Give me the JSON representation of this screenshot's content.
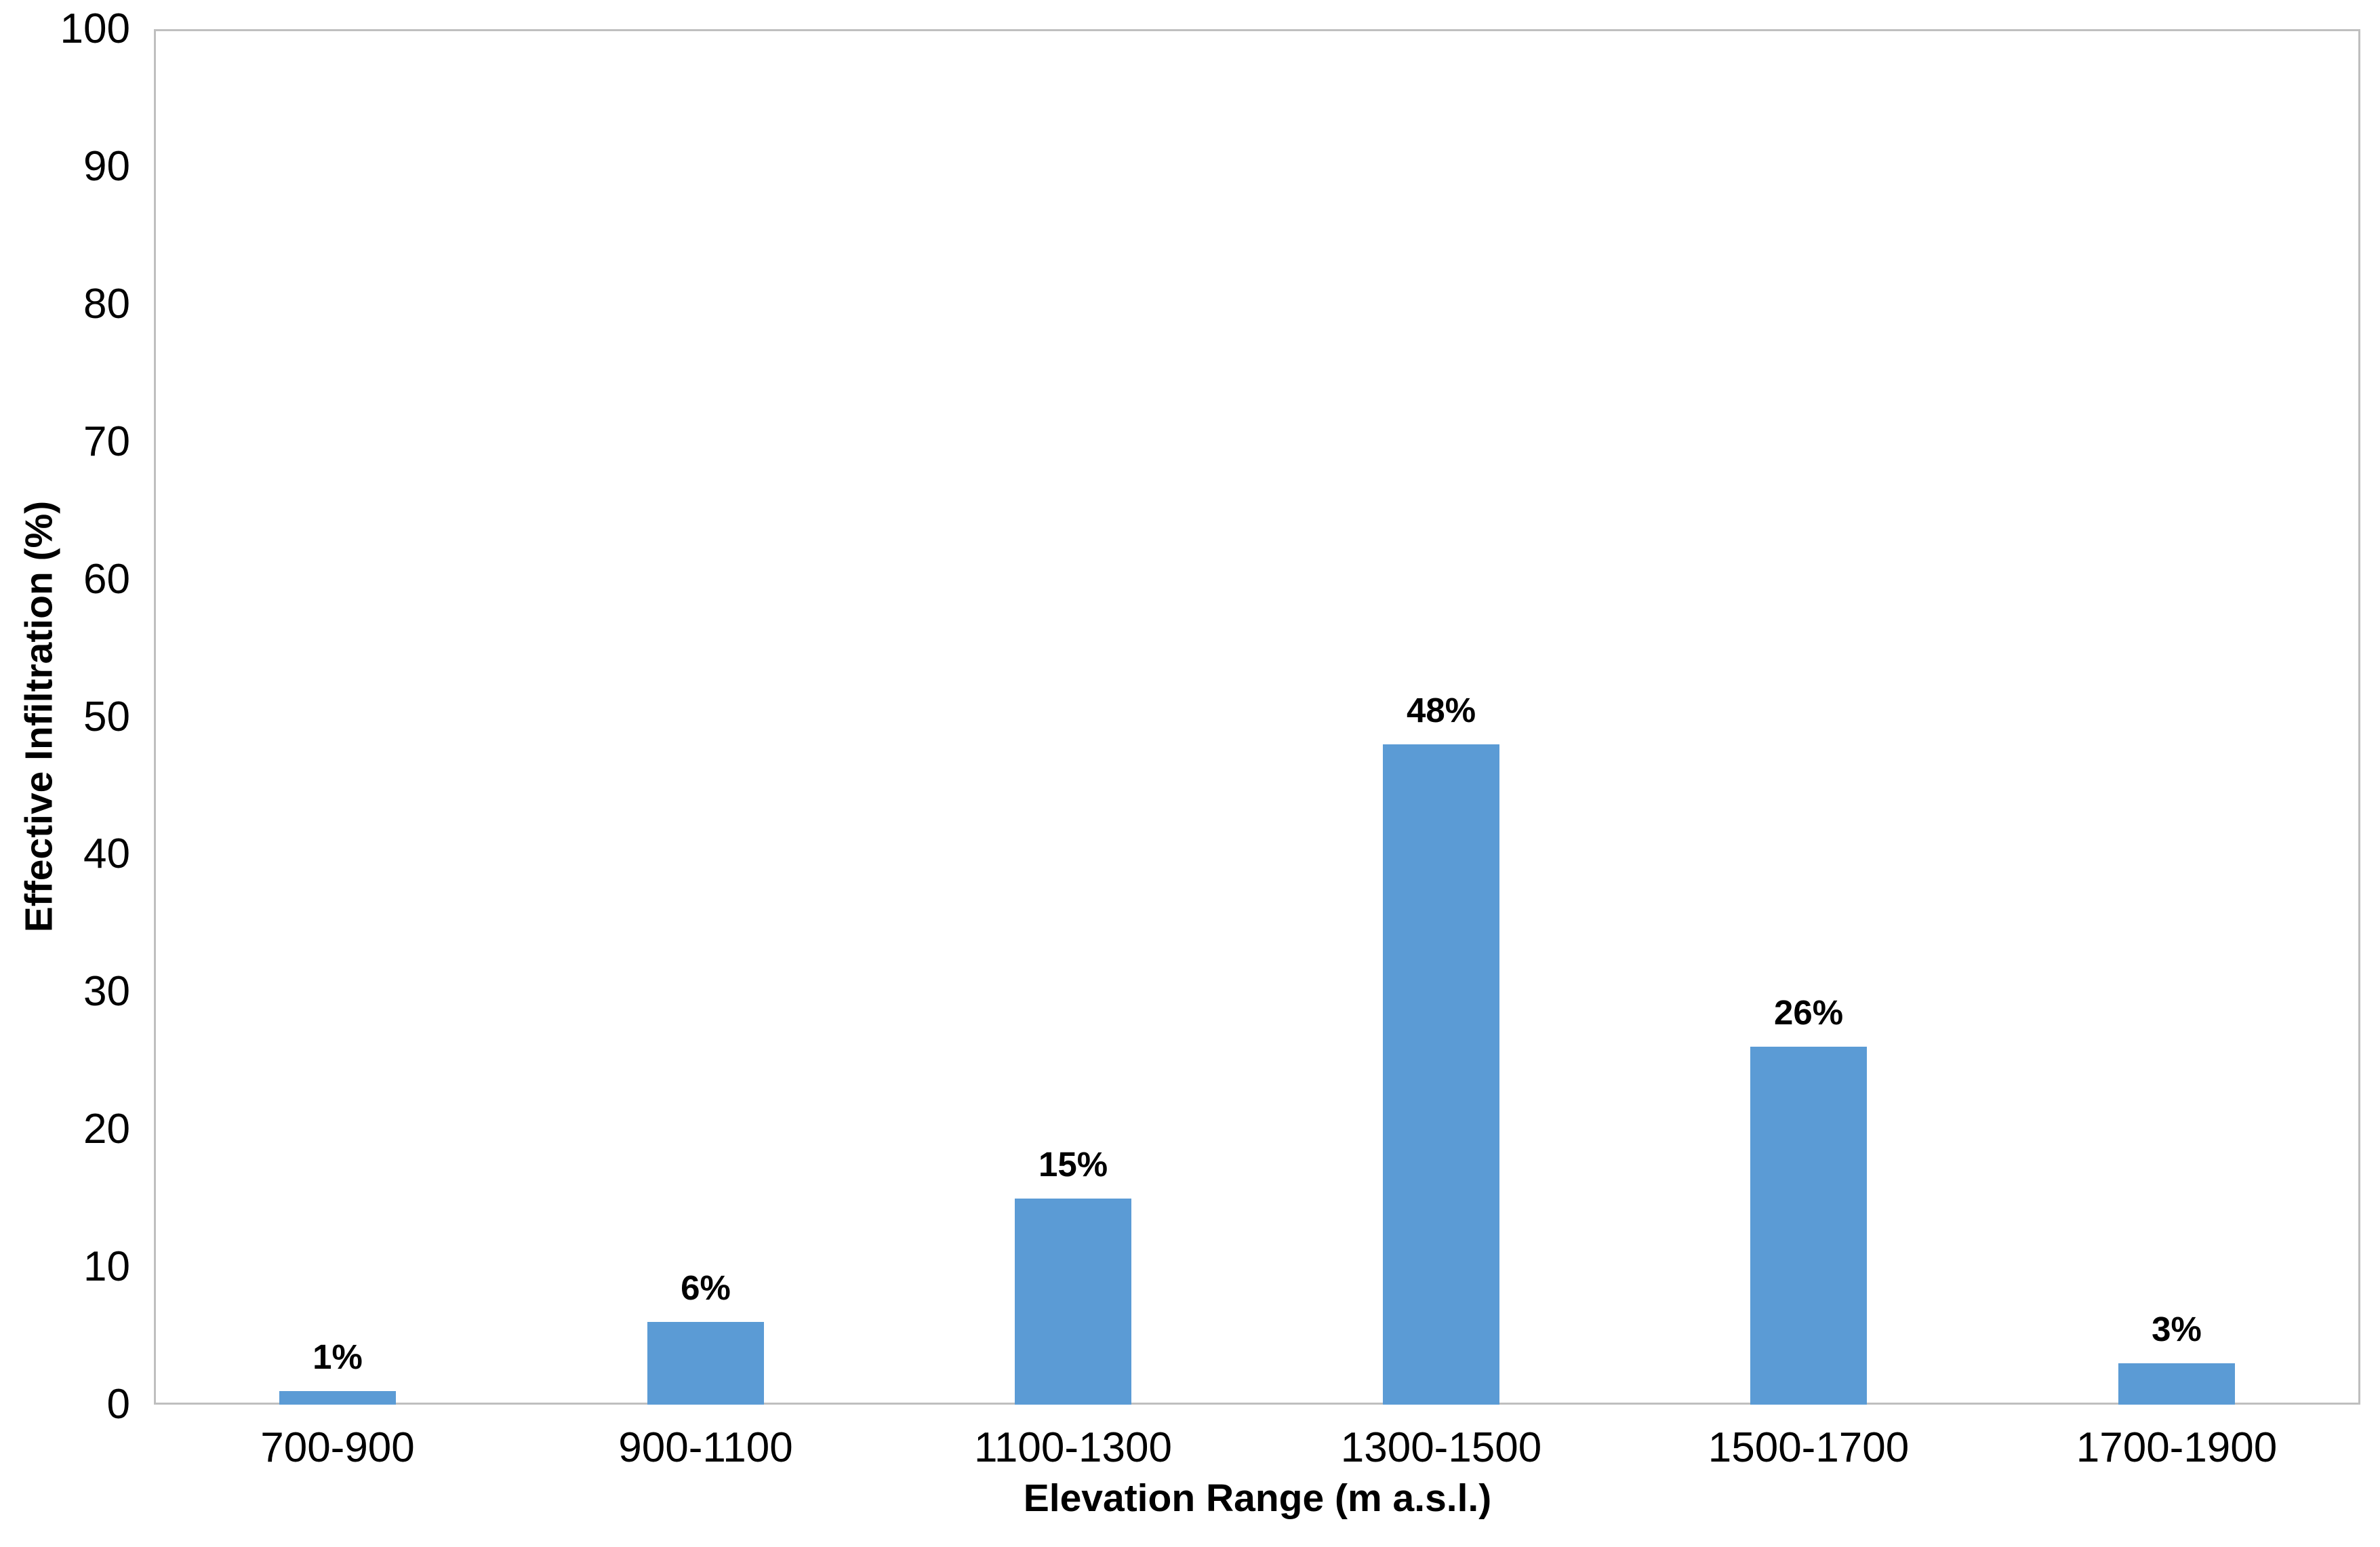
{
  "chart_data": {
    "type": "bar",
    "title": "",
    "categories": [
      "700-900",
      "900-1100",
      "1100-1300",
      "1300-1500",
      "1500-1700",
      "1700-1900"
    ],
    "values": [
      1,
      6,
      15,
      48,
      26,
      3
    ],
    "data_labels": [
      "1%",
      "6%",
      "15%",
      "48%",
      "26%",
      "3%"
    ],
    "xlabel": "Elevation Range (m a.s.l.)",
    "ylabel": "Effective Infiltration (%)",
    "ylim": [
      0,
      100
    ],
    "yticks": [
      0,
      10,
      20,
      30,
      40,
      50,
      60,
      70,
      80,
      90,
      100
    ],
    "grid": false,
    "legend": "none",
    "bar_color": "#5B9BD5",
    "axis_line_color": "#BFBFBF",
    "text_color": "#000000",
    "background": "#FFFFFF"
  }
}
